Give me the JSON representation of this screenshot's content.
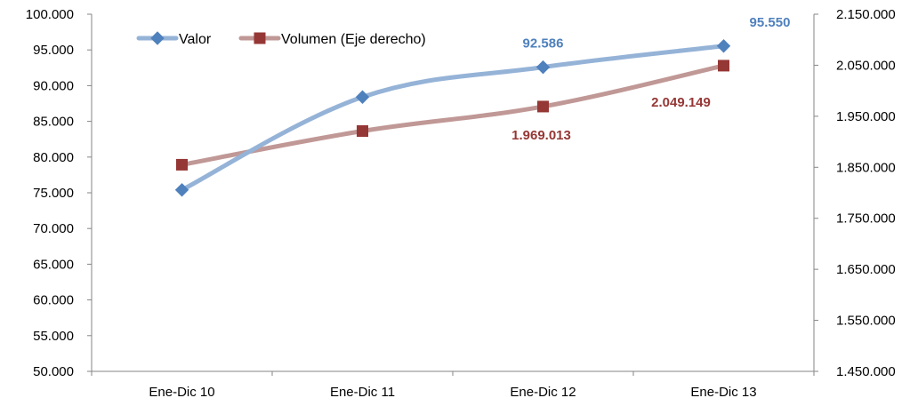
{
  "chart_data": {
    "type": "line",
    "categories": [
      "Ene-Dic 10",
      "Ene-Dic 11",
      "Ene-Dic 12",
      "Ene-Dic 13"
    ],
    "series": [
      {
        "name": "Valor",
        "axis": "left",
        "color": "#4F81BD",
        "line_color": "#95B3D7",
        "marker": "diamond",
        "values": [
          75400,
          88400,
          92586,
          95550
        ],
        "data_labels": [
          "",
          "",
          "92.586",
          "95.550"
        ]
      },
      {
        "name": "Volumen (Eje derecho)",
        "axis": "right",
        "color": "#953735",
        "line_color": "#C09896",
        "marker": "square",
        "values": [
          1855000,
          1921000,
          1969013,
          2049149
        ],
        "data_labels": [
          "",
          "",
          "1.969.013",
          "2.049.149"
        ]
      }
    ],
    "y_left": {
      "ylim": [
        50000,
        100000
      ],
      "tick_labels": [
        "50.000",
        "55.000",
        "60.000",
        "65.000",
        "70.000",
        "75.000",
        "80.000",
        "85.000",
        "90.000",
        "95.000",
        "100.000"
      ]
    },
    "y_right": {
      "ylim": [
        1450000,
        2150000
      ],
      "tick_labels": [
        "1.450.000",
        "1.550.000",
        "1.650.000",
        "1.750.000",
        "1.850.000",
        "1.950.000",
        "2.050.000",
        "2.150.000"
      ]
    },
    "grid": false,
    "legend": "top-left",
    "title": "",
    "xlabel": "",
    "ylabel": ""
  }
}
